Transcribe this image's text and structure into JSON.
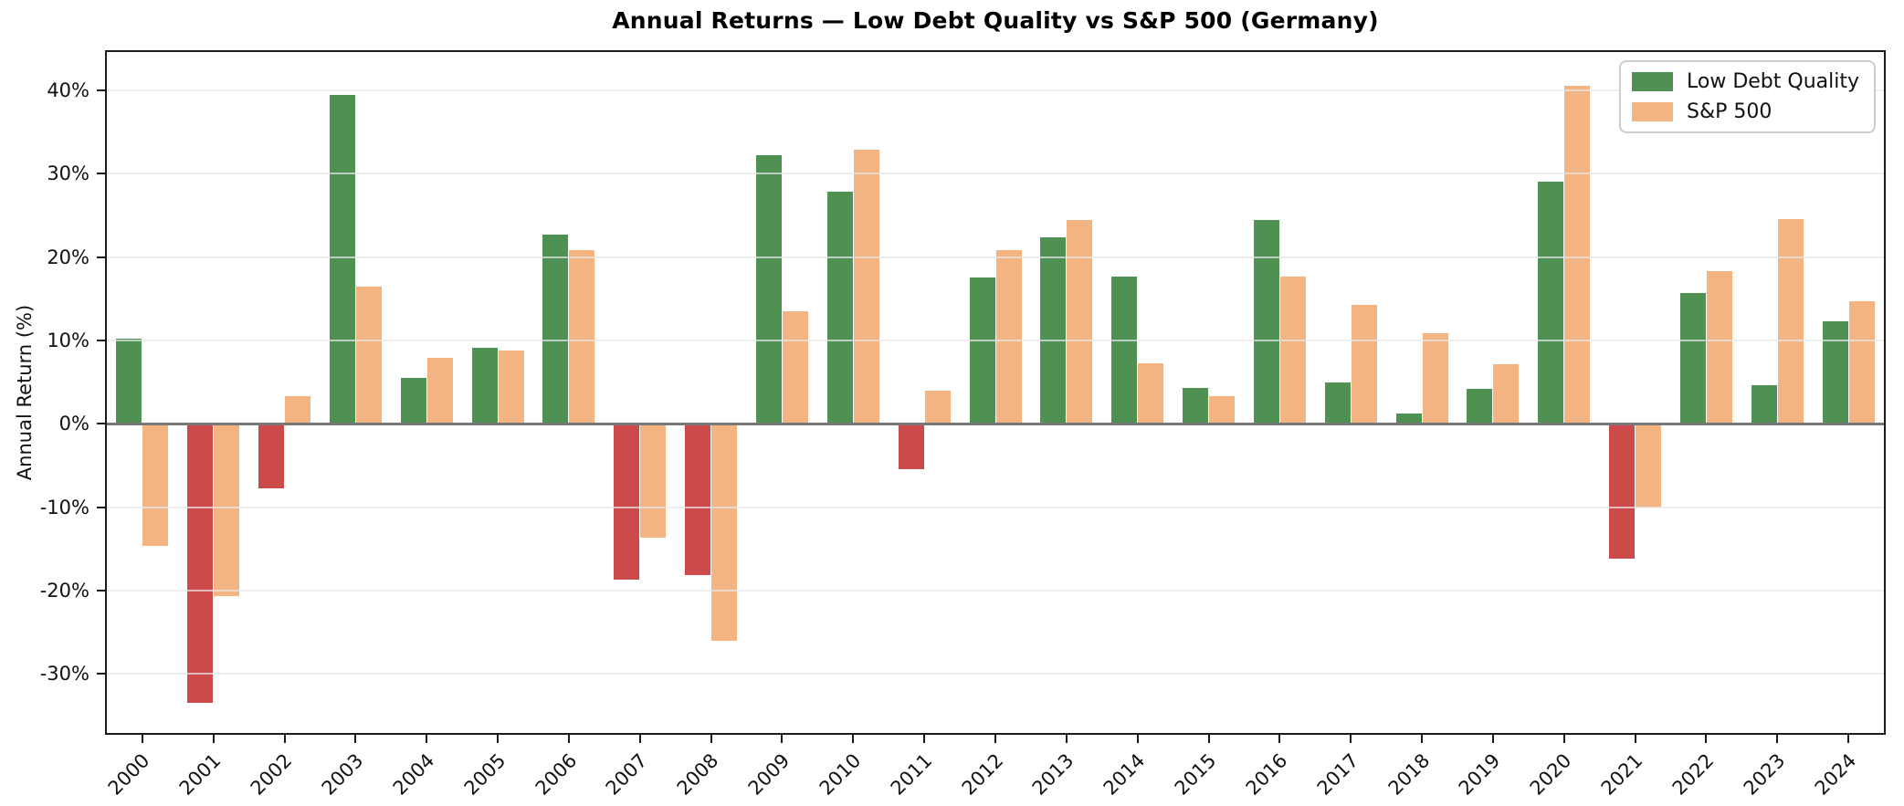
{
  "title": "Annual Returns — Low Debt Quality vs S&P 500 (Germany)",
  "ylabel": "Annual Return (%)",
  "legend": {
    "items": [
      {
        "label": "Low Debt Quality",
        "color": "#4e9152"
      },
      {
        "label": "S&P 500",
        "color": "#f2b482"
      }
    ]
  },
  "colors": {
    "low_debt_positive": "#4e9152",
    "low_debt_negative": "#cd4a4a",
    "sp500": "#f2b482",
    "zero_line": "#787878",
    "gridline": "#e7e7e7",
    "spine": "#1a1a1a"
  },
  "axis": {
    "y_tick_values": [
      40,
      30,
      20,
      10,
      0,
      -10,
      -20,
      -30
    ],
    "y_tick_labels": [
      "40%",
      "30%",
      "20%",
      "10%",
      "0%",
      "-10%",
      "-20%",
      "-30%"
    ]
  },
  "chart_data": {
    "type": "bar",
    "title": "Annual Returns — Low Debt Quality vs S&P 500 (Germany)",
    "xlabel": "",
    "ylabel": "Annual Return (%)",
    "ylim": [
      -37.1,
      44.6
    ],
    "grid": true,
    "legend_position": "upper right",
    "categories": [
      "2000",
      "2001",
      "2002",
      "2003",
      "2004",
      "2005",
      "2006",
      "2007",
      "2008",
      "2009",
      "2010",
      "2011",
      "2012",
      "2013",
      "2014",
      "2015",
      "2016",
      "2017",
      "2018",
      "2019",
      "2020",
      "2021",
      "2022",
      "2023",
      "2024"
    ],
    "series": [
      {
        "name": "Low Debt Quality",
        "color": "#4e9152",
        "negative_color": "#cd4a4a",
        "values": [
          10.2,
          -33.5,
          -7.8,
          39.5,
          5.5,
          9.1,
          22.7,
          -18.7,
          -18.2,
          32.2,
          27.8,
          -5.5,
          17.5,
          22.4,
          17.7,
          4.3,
          24.4,
          5.0,
          1.2,
          4.2,
          29.1,
          -16.2,
          15.7,
          4.6,
          12.3
        ]
      },
      {
        "name": "S&P 500",
        "color": "#f2b482",
        "values": [
          -14.6,
          -20.7,
          3.3,
          16.4,
          7.9,
          8.8,
          20.8,
          -13.7,
          -26.0,
          13.5,
          32.9,
          4.0,
          20.8,
          24.4,
          7.3,
          3.3,
          17.7,
          14.3,
          10.9,
          7.1,
          40.6,
          -10.1,
          18.3,
          24.6,
          14.7
        ]
      }
    ]
  }
}
